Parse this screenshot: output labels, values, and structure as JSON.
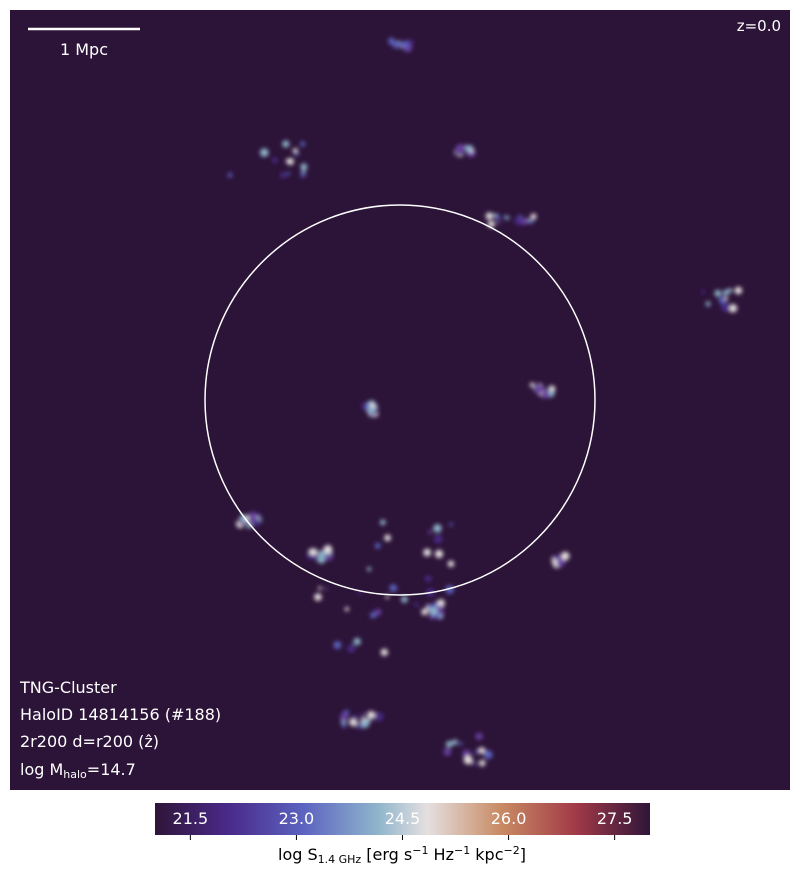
{
  "image": {
    "scale_bar": "1 Mpc",
    "redshift": "z=0.0",
    "info": {
      "simulation": "TNG-Cluster",
      "halo": "HaloID 14814156 (#188)",
      "projection": "2r200 d=r200 (ẑ)",
      "mass": {
        "prefix": "log M",
        "sub": "halo",
        "suffix": "=14.7"
      }
    }
  },
  "colorbar": {
    "range": [
      21,
      28
    ],
    "ticks": [
      {
        "value": 21.5,
        "label": "21.5"
      },
      {
        "value": 23,
        "label": "23.0"
      },
      {
        "value": 24.5,
        "label": "24.5"
      },
      {
        "value": 26,
        "label": "26.0"
      },
      {
        "value": 27.5,
        "label": "27.5"
      }
    ],
    "label": {
      "prefix": "log S",
      "sub": "1.4 GHz",
      "u1": " [erg s",
      "e1": "−1",
      "u2": " Hz",
      "e2": "−1",
      "u3": " kpc",
      "e3": "−2",
      "u4": "]"
    }
  }
}
